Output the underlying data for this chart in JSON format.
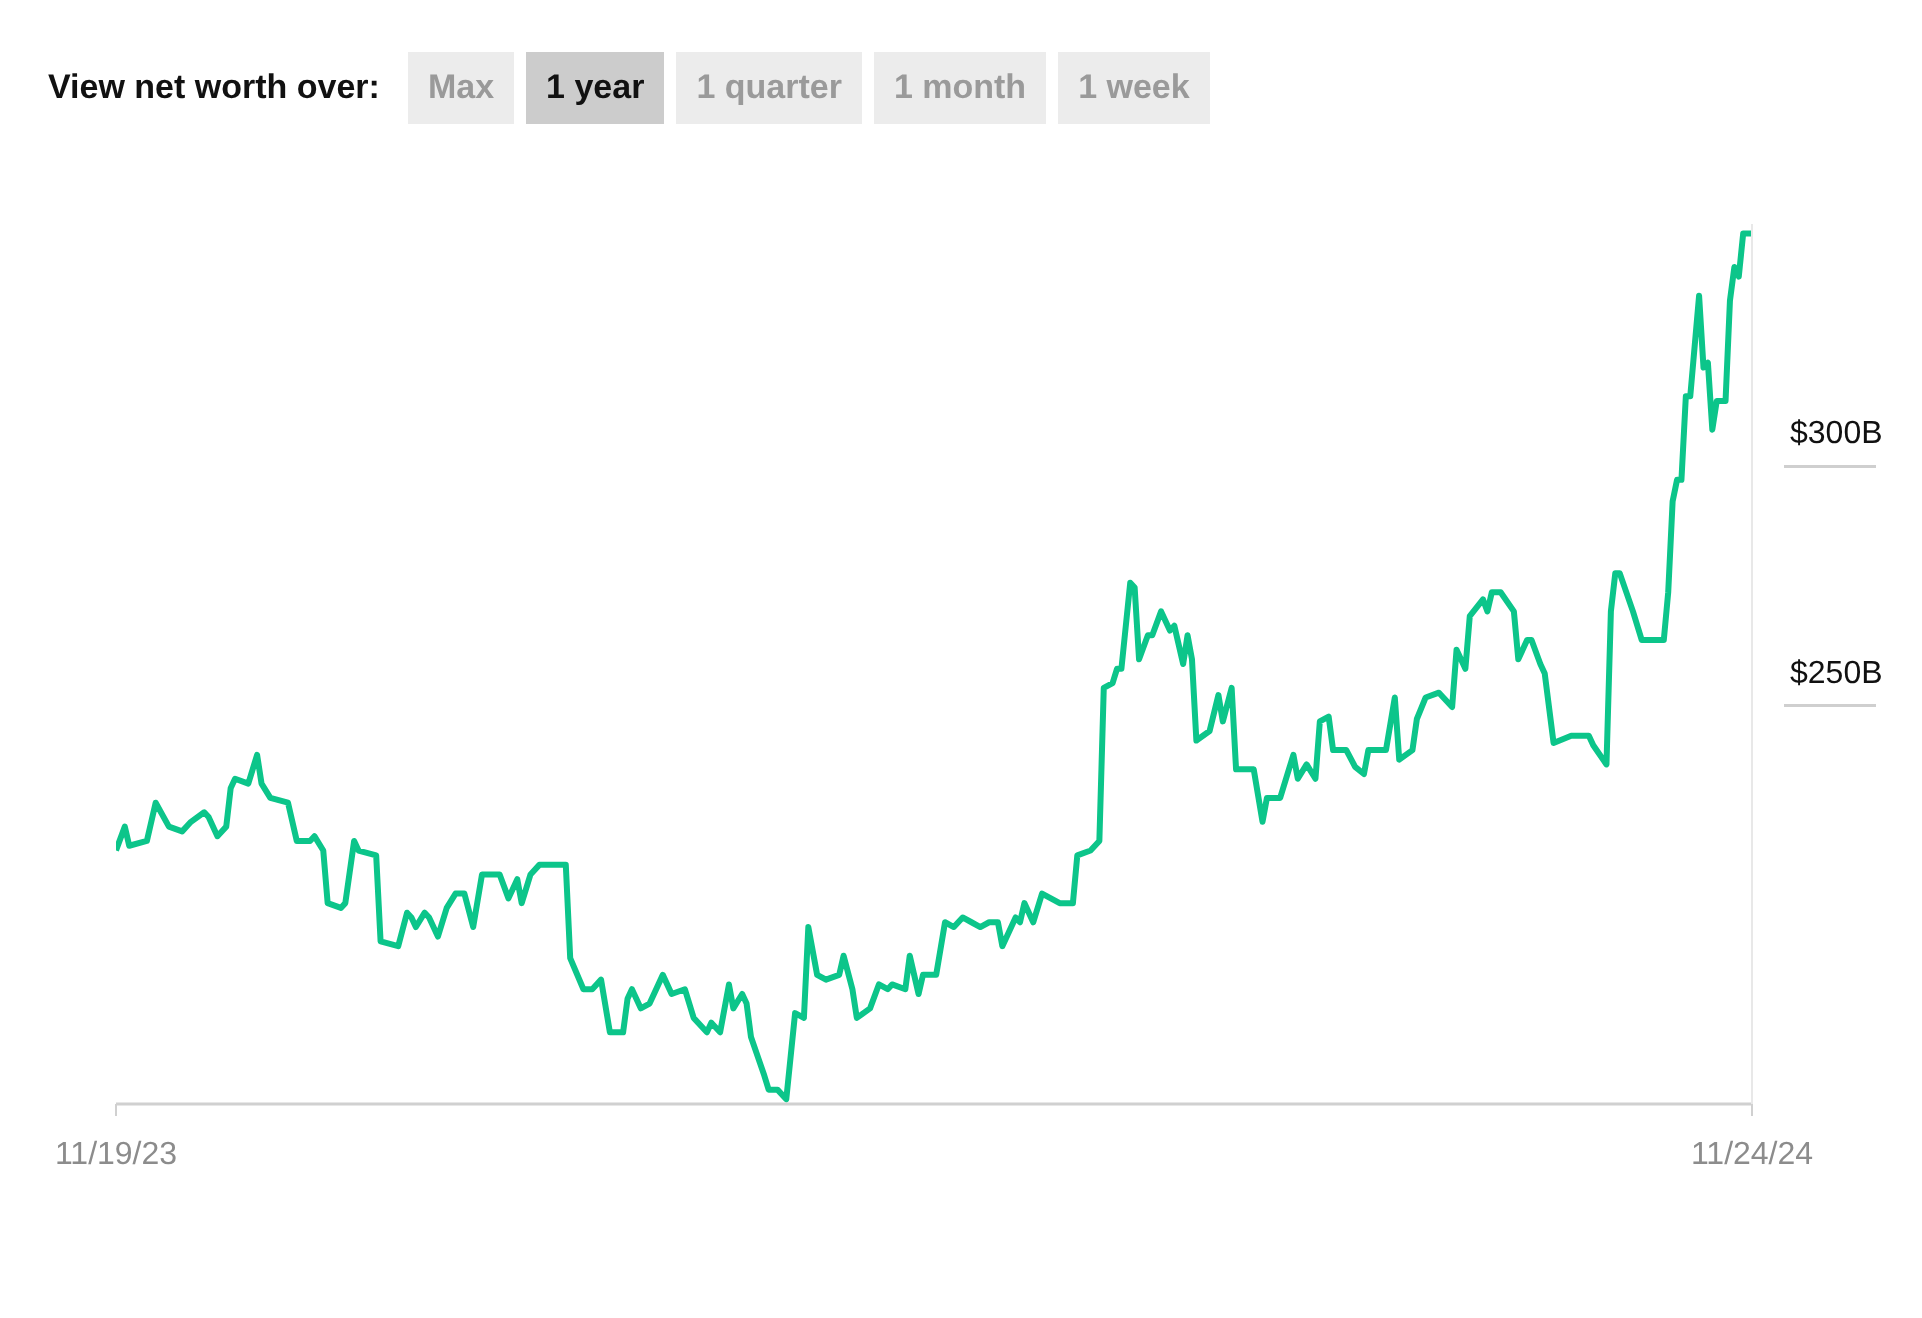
{
  "chart_data": {
    "type": "line",
    "title": "View net worth over:",
    "annotations": [
      "Max",
      "1 year",
      "1 quarter",
      "1 month",
      "1 week"
    ],
    "x": [
      "2023-11-19",
      "2023-11-21",
      "2023-11-22",
      "2023-11-26",
      "2023-11-28",
      "2023-12-01",
      "2023-12-04",
      "2023-12-06",
      "2023-12-09",
      "2023-12-10",
      "2023-12-12",
      "2023-12-14",
      "2023-12-15",
      "2023-12-16",
      "2023-12-19",
      "2023-12-21",
      "2023-12-22",
      "2023-12-24",
      "2023-12-28",
      "2023-12-30",
      "2024-01-02",
      "2024-01-03",
      "2024-01-05",
      "2024-01-06",
      "2024-01-09",
      "2024-01-10",
      "2024-01-12",
      "2024-01-13",
      "2024-01-17",
      "2024-01-18",
      "2024-01-22",
      "2024-01-24",
      "2024-01-25",
      "2024-01-26",
      "2024-01-28",
      "2024-01-29",
      "2024-01-31",
      "2024-02-02",
      "2024-02-04",
      "2024-02-06",
      "2024-02-08",
      "2024-02-10",
      "2024-02-14",
      "2024-02-16",
      "2024-02-18",
      "2024-02-19",
      "2024-02-21",
      "2024-02-23",
      "2024-02-29",
      "2024-03-01",
      "2024-03-04",
      "2024-03-06",
      "2024-03-08",
      "2024-03-10",
      "2024-03-13",
      "2024-03-14",
      "2024-03-15",
      "2024-03-17",
      "2024-03-19",
      "2024-03-22",
      "2024-03-24",
      "2024-03-27",
      "2024-03-29",
      "2024-04-01",
      "2024-04-02",
      "2024-04-04",
      "2024-04-06",
      "2024-04-07",
      "2024-04-09",
      "2024-04-10",
      "2024-04-11",
      "2024-04-14",
      "2024-04-15",
      "2024-04-17",
      "2024-04-19",
      "2024-04-21",
      "2024-04-23",
      "2024-04-24",
      "2024-04-26",
      "2024-04-28",
      "2024-05-01",
      "2024-05-02",
      "2024-05-04",
      "2024-05-05",
      "2024-05-08",
      "2024-05-10",
      "2024-05-12",
      "2024-05-13",
      "2024-05-16",
      "2024-05-17",
      "2024-05-19",
      "2024-05-20",
      "2024-05-23",
      "2024-05-25",
      "2024-05-27",
      "2024-05-29",
      "2024-05-31",
      "2024-06-02",
      "2024-06-04",
      "2024-06-06",
      "2024-06-07",
      "2024-06-10",
      "2024-06-11",
      "2024-06-12",
      "2024-06-14",
      "2024-06-16",
      "2024-06-18",
      "2024-06-20",
      "2024-06-23",
      "2024-06-24",
      "2024-06-27",
      "2024-06-29",
      "2024-06-30",
      "2024-07-02",
      "2024-07-03",
      "2024-07-04",
      "2024-07-06",
      "2024-07-07",
      "2024-07-08",
      "2024-07-10",
      "2024-07-11",
      "2024-07-13",
      "2024-07-15",
      "2024-07-16",
      "2024-07-18",
      "2024-07-19",
      "2024-07-20",
      "2024-07-21",
      "2024-07-24",
      "2024-07-26",
      "2024-07-27",
      "2024-07-29",
      "2024-07-30",
      "2024-08-03",
      "2024-08-05",
      "2024-08-06",
      "2024-08-09",
      "2024-08-11",
      "2024-08-12",
      "2024-08-13",
      "2024-08-15",
      "2024-08-17",
      "2024-08-18",
      "2024-08-20",
      "2024-08-21",
      "2024-08-24",
      "2024-08-26",
      "2024-08-28",
      "2024-08-29",
      "2024-09-02",
      "2024-09-04",
      "2024-09-05",
      "2024-09-08",
      "2024-09-09",
      "2024-09-11",
      "2024-09-14",
      "2024-09-17",
      "2024-09-18",
      "2024-09-20",
      "2024-09-21",
      "2024-09-24",
      "2024-09-25",
      "2024-09-26",
      "2024-09-28",
      "2024-10-01",
      "2024-10-02",
      "2024-10-04",
      "2024-10-05",
      "2024-10-07",
      "2024-10-08",
      "2024-10-10",
      "2024-10-14",
      "2024-10-18",
      "2024-10-19",
      "2024-10-22",
      "2024-10-23",
      "2024-10-24",
      "2024-10-25",
      "2024-10-28",
      "2024-10-30",
      "2024-11-04",
      "2024-11-05",
      "2024-11-06",
      "2024-11-07",
      "2024-11-08",
      "2024-11-09",
      "2024-11-10",
      "2024-11-12",
      "2024-11-13",
      "2024-11-14",
      "2024-11-15",
      "2024-11-16",
      "2024-11-18",
      "2024-11-19",
      "2024-11-20",
      "2024-11-21",
      "2024-11-22",
      "2024-11-24"
    ],
    "series": [
      {
        "color": "#0cc58a",
        "values": [
          213,
          218,
          214,
          215,
          223,
          218,
          217,
          219,
          221,
          220,
          216,
          218,
          226,
          228,
          227,
          233,
          227,
          224,
          223,
          215,
          215,
          216,
          213,
          202,
          201,
          202,
          215,
          213,
          212,
          194,
          193,
          200,
          199,
          197,
          200,
          199,
          195,
          201,
          204,
          204,
          197,
          208,
          208,
          203,
          207,
          202,
          208,
          210,
          210,
          190.5,
          184,
          184,
          186,
          175,
          175,
          182,
          184,
          180,
          181,
          187,
          183,
          184,
          178,
          175,
          177,
          175,
          185,
          180,
          183,
          181,
          174,
          166,
          163,
          163,
          161,
          179,
          178,
          197,
          187,
          186,
          187,
          191,
          184,
          178,
          180,
          185,
          184,
          185,
          184,
          191,
          183,
          187,
          187,
          198,
          197,
          199,
          198,
          197,
          198,
          198,
          193,
          199,
          198,
          202,
          198,
          204,
          203,
          202,
          202,
          212,
          213,
          215,
          247,
          248,
          251,
          251,
          269,
          268,
          253,
          258,
          258,
          263,
          259,
          260,
          252,
          258,
          253,
          236,
          238,
          245.5,
          240,
          247,
          230,
          230,
          219,
          224,
          224,
          230,
          233,
          228,
          231,
          228,
          240,
          241,
          234,
          234,
          230.5,
          229,
          234,
          234,
          245,
          232,
          234,
          240.5,
          245,
          246,
          243,
          255,
          251,
          262,
          265.5,
          263,
          267,
          267,
          263,
          253,
          257,
          257,
          252,
          250,
          235.5,
          237,
          237,
          235,
          231,
          263,
          271,
          271,
          263,
          257,
          257,
          267,
          286,
          290.5,
          290.5,
          308,
          308,
          329,
          314,
          315,
          301,
          307,
          307,
          328,
          335,
          333,
          342,
          342
        ]
      }
    ],
    "xlim": [
      "2023-11-19",
      "2024-11-24"
    ],
    "xticks": [
      {
        "value": "2023-11-19",
        "label": "11/19/23"
      },
      {
        "value": "2024-11-24",
        "label": "11/24/24"
      }
    ],
    "ylim": [
      160,
      344
    ],
    "yticks": [
      {
        "value": 250,
        "label": "$250B"
      },
      {
        "value": 300,
        "label": "$300B"
      }
    ],
    "grid": false,
    "legend": false,
    "marker": "none",
    "line_style": "solid"
  }
}
